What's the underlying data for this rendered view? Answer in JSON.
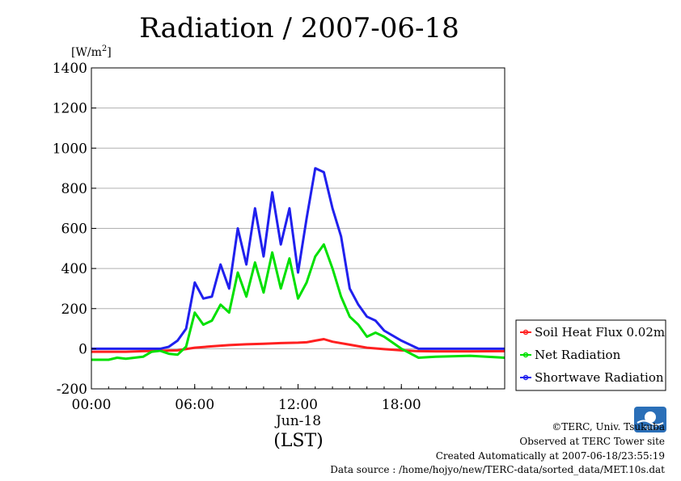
{
  "chart_data": {
    "type": "line",
    "title": "Radiation / 2007-06-18",
    "ylabel_unit": "[W/m",
    "ylabel_sup": "2",
    "ylabel_close": "]",
    "xlabel_date": "Jun-18",
    "xlabel_tz": "(LST)",
    "ylim": [
      -200,
      1400
    ],
    "xlim_hours": [
      0,
      24
    ],
    "yticks": [
      -200,
      0,
      200,
      400,
      600,
      800,
      1000,
      1200,
      1400
    ],
    "xticks": [
      {
        "hour": 0,
        "label": "00:00"
      },
      {
        "hour": 6,
        "label": "06:00"
      },
      {
        "hour": 12,
        "label": "12:00"
      },
      {
        "hour": 18,
        "label": "18:00"
      }
    ],
    "grid": true,
    "legend_position": "right",
    "series": [
      {
        "name": "Soil Heat Flux 0.02m",
        "color": "#ff2020",
        "points": [
          [
            0,
            -15
          ],
          [
            2,
            -15
          ],
          [
            3,
            -12
          ],
          [
            4,
            -10
          ],
          [
            5,
            -8
          ],
          [
            6,
            5
          ],
          [
            7,
            12
          ],
          [
            8,
            18
          ],
          [
            9,
            22
          ],
          [
            10,
            25
          ],
          [
            11,
            28
          ],
          [
            12,
            30
          ],
          [
            12.5,
            32
          ],
          [
            13,
            40
          ],
          [
            13.5,
            48
          ],
          [
            14,
            35
          ],
          [
            15,
            20
          ],
          [
            16,
            5
          ],
          [
            17,
            -2
          ],
          [
            18,
            -8
          ],
          [
            19,
            -12
          ],
          [
            20,
            -13
          ],
          [
            22,
            -13
          ],
          [
            24,
            -12
          ]
        ]
      },
      {
        "name": "Net Radiation",
        "color": "#00e000",
        "points": [
          [
            0,
            -55
          ],
          [
            1,
            -55
          ],
          [
            1.5,
            -45
          ],
          [
            2,
            -50
          ],
          [
            3,
            -40
          ],
          [
            3.5,
            -15
          ],
          [
            4,
            -10
          ],
          [
            4.5,
            -25
          ],
          [
            5,
            -30
          ],
          [
            5.5,
            10
          ],
          [
            6,
            180
          ],
          [
            6.5,
            120
          ],
          [
            7,
            140
          ],
          [
            7.5,
            220
          ],
          [
            8,
            180
          ],
          [
            8.5,
            380
          ],
          [
            9,
            260
          ],
          [
            9.5,
            430
          ],
          [
            10,
            280
          ],
          [
            10.5,
            480
          ],
          [
            11,
            300
          ],
          [
            11.5,
            450
          ],
          [
            12,
            250
          ],
          [
            12.5,
            330
          ],
          [
            13,
            460
          ],
          [
            13.5,
            520
          ],
          [
            14,
            400
          ],
          [
            14.5,
            260
          ],
          [
            15,
            160
          ],
          [
            15.5,
            120
          ],
          [
            16,
            60
          ],
          [
            16.5,
            80
          ],
          [
            17,
            60
          ],
          [
            18,
            0
          ],
          [
            19,
            -45
          ],
          [
            20,
            -40
          ],
          [
            22,
            -35
          ],
          [
            24,
            -45
          ]
        ]
      },
      {
        "name": "Shortwave Radiation",
        "color": "#2020ee",
        "points": [
          [
            0,
            0
          ],
          [
            3,
            0
          ],
          [
            4,
            0
          ],
          [
            4.5,
            10
          ],
          [
            5,
            40
          ],
          [
            5.5,
            100
          ],
          [
            6,
            330
          ],
          [
            6.5,
            250
          ],
          [
            7,
            260
          ],
          [
            7.5,
            420
          ],
          [
            8,
            300
          ],
          [
            8.5,
            600
          ],
          [
            9,
            420
          ],
          [
            9.5,
            700
          ],
          [
            10,
            460
          ],
          [
            10.5,
            780
          ],
          [
            11,
            520
          ],
          [
            11.5,
            700
          ],
          [
            12,
            380
          ],
          [
            12.5,
            650
          ],
          [
            13,
            900
          ],
          [
            13.5,
            880
          ],
          [
            14,
            700
          ],
          [
            14.5,
            560
          ],
          [
            15,
            300
          ],
          [
            15.5,
            220
          ],
          [
            16,
            160
          ],
          [
            16.5,
            140
          ],
          [
            17,
            90
          ],
          [
            18,
            40
          ],
          [
            19,
            0
          ],
          [
            24,
            0
          ]
        ]
      }
    ]
  },
  "footer": {
    "copyright": "©TERC, Univ. Tsukuba",
    "site": "Observed at TERC Tower site",
    "created": "Created Automatically at 2007-06-18/23:55:19",
    "source": "Data source : /home/hojyo/new/TERC-data/sorted_data/MET.10s.dat",
    "logo_text": "TERC"
  }
}
